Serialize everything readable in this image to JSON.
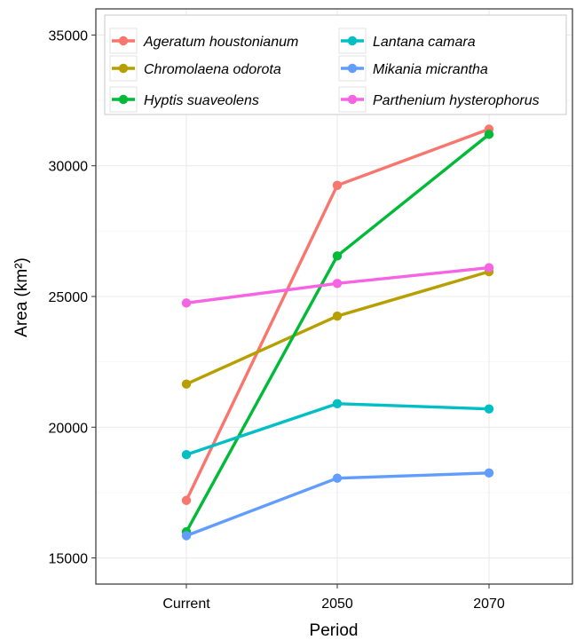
{
  "chart_data": {
    "type": "line",
    "title": "",
    "xlabel": "Period",
    "ylabel": "Area (km²)",
    "categories": [
      "Current",
      "2050",
      "2070"
    ],
    "ylim": [
      14000,
      36000
    ],
    "yticks": [
      15000,
      20000,
      25000,
      30000,
      35000
    ],
    "ytick_labels": [
      "15000",
      "20000",
      "25000",
      "30000",
      "35000"
    ],
    "grid": true,
    "legend_position": "top",
    "series": [
      {
        "name": "Ageratum houstonianum",
        "color": "#F8766D",
        "values": [
          17200,
          29250,
          31400
        ]
      },
      {
        "name": "Chromolaena odorota",
        "color": "#B79F00",
        "values": [
          21650,
          24250,
          25950
        ]
      },
      {
        "name": "Hyptis suaveolens",
        "color": "#00BA38",
        "values": [
          16000,
          26550,
          31200
        ]
      },
      {
        "name": "Lantana camara",
        "color": "#00BFC4",
        "values": [
          18950,
          20900,
          20700
        ]
      },
      {
        "name": "Mikania micrantha",
        "color": "#619CFF",
        "values": [
          15850,
          18050,
          18250
        ]
      },
      {
        "name": "Parthenium hysterophorus",
        "color": "#F564E3",
        "values": [
          24750,
          25500,
          26100
        ]
      }
    ]
  }
}
